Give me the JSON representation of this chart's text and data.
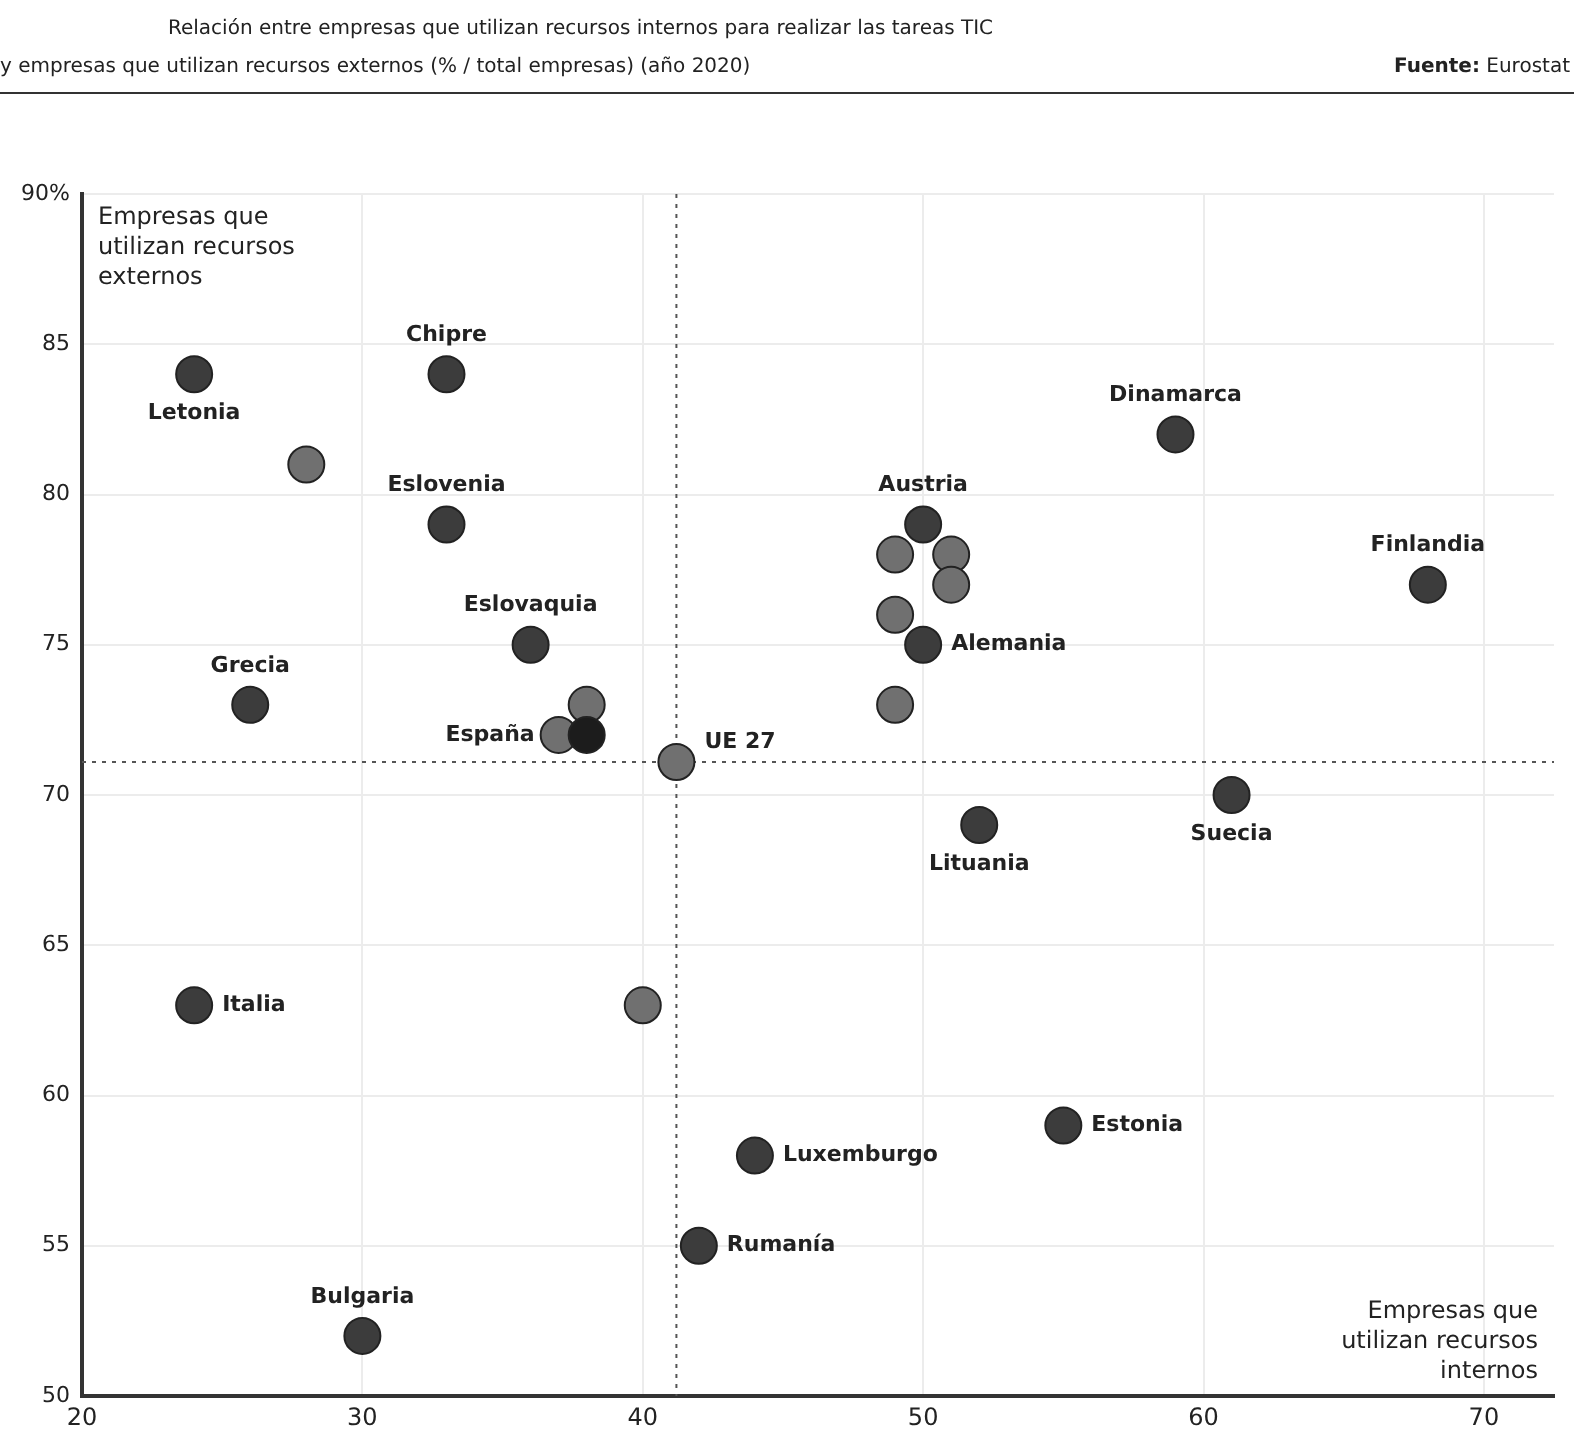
{
  "chart_data": {
    "type": "scatter",
    "title": "Relación entre empresas que utilizan recursos internos para realizar las tareas TIC",
    "subtitle": "y empresas que utilizan recursos externos (% / total empresas) (año 2020)",
    "xlabel": "Empresas que utilizan recursos internos",
    "ylabel": "Empresas que utilizan recursos externos",
    "x": [
      24,
      28,
      33,
      33,
      36,
      26,
      38,
      37,
      38,
      41.2,
      59,
      50,
      49,
      51,
      51,
      49,
      50,
      49,
      68,
      61,
      52,
      55,
      44,
      42,
      24,
      40,
      30
    ],
    "values": [
      84,
      81,
      84,
      79,
      75,
      73,
      73,
      72,
      72,
      71.1,
      82,
      79,
      78,
      78,
      77,
      76,
      75,
      73,
      77,
      70,
      69,
      59,
      58,
      55,
      63,
      63,
      52
    ],
    "colors": [
      "#3c3c3c",
      "#707070",
      "#3c3c3c",
      "#3c3c3c",
      "#3c3c3c",
      "#3c3c3c",
      "#707070",
      "#707070",
      "#1c1c1c",
      "#707070",
      "#3c3c3c",
      "#3c3c3c",
      "#707070",
      "#707070",
      "#707070",
      "#707070",
      "#3c3c3c",
      "#707070",
      "#3c3c3c",
      "#3c3c3c",
      "#3c3c3c",
      "#3c3c3c",
      "#3c3c3c",
      "#3c3c3c",
      "#3c3c3c",
      "#707070",
      "#3c3c3c"
    ],
    "xlim": [
      20,
      72.5
    ],
    "xticks": [
      20,
      30,
      40,
      50,
      60,
      70
    ],
    "ylim": [
      50,
      90
    ],
    "yticks": [
      50,
      55,
      60,
      65,
      70,
      75,
      80,
      85,
      {
        "value": 90,
        "label": "90%"
      }
    ],
    "grid": true,
    "marker": "circle",
    "legend": false,
    "ref_lines": [
      {
        "axis": "x",
        "value": 41.2,
        "line_style": "dotted",
        "color": "#555555"
      },
      {
        "axis": "y",
        "value": 71.1,
        "line_style": "dotted",
        "color": "#555555"
      }
    ],
    "annotations": [
      "Fuente: Eurostat",
      {
        "text": "Letonia",
        "x": 24,
        "y": 84
      },
      {
        "text": "Chipre",
        "x": 33,
        "y": 84
      },
      {
        "text": "Eslovenia",
        "x": 33,
        "y": 79
      },
      {
        "text": "Eslovaquia",
        "x": 36,
        "y": 75
      },
      {
        "text": "Grecia",
        "x": 26,
        "y": 73
      },
      {
        "text": "España",
        "x": 38,
        "y": 72
      },
      {
        "text": "UE 27",
        "x": 41.2,
        "y": 71.1
      },
      {
        "text": "Dinamarca",
        "x": 59,
        "y": 82
      },
      {
        "text": "Austria",
        "x": 50,
        "y": 79
      },
      {
        "text": "Alemania",
        "x": 50,
        "y": 75
      },
      {
        "text": "Finlandia",
        "x": 68,
        "y": 77
      },
      {
        "text": "Suecia",
        "x": 61,
        "y": 70
      },
      {
        "text": "Lituania",
        "x": 52,
        "y": 69
      },
      {
        "text": "Estonia",
        "x": 55,
        "y": 59
      },
      {
        "text": "Luxemburgo",
        "x": 44,
        "y": 58
      },
      {
        "text": "Rumanía",
        "x": 42,
        "y": 55
      },
      {
        "text": "Italia",
        "x": 24,
        "y": 63
      },
      {
        "text": "Bulgaria",
        "x": 30,
        "y": 52
      }
    ]
  }
}
